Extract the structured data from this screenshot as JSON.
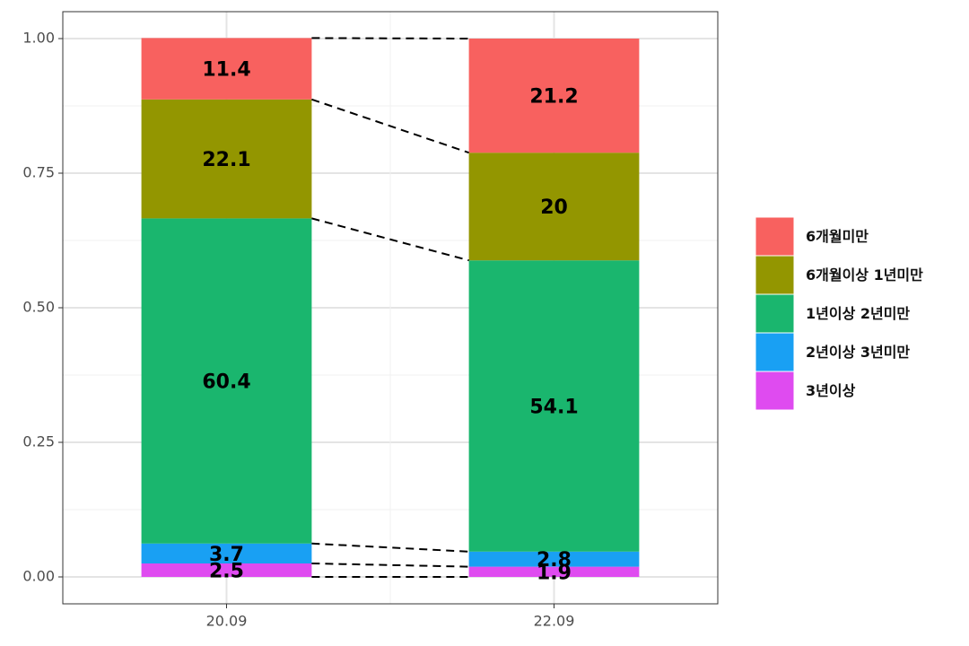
{
  "chart_data": {
    "type": "bar",
    "stacked": true,
    "categories": [
      "20.09",
      "22.09"
    ],
    "series": [
      {
        "name": "6개월미만",
        "color": "#f8615f",
        "values": [
          0.114,
          0.212
        ],
        "value_labels": [
          "11.4",
          "21.2"
        ]
      },
      {
        "name": "6개월이상 1년미만",
        "color": "#939600",
        "values": [
          0.221,
          0.2
        ],
        "value_labels": [
          "22.1",
          "20"
        ]
      },
      {
        "name": "1년이상 2년미만",
        "color": "#1ab66e",
        "values": [
          0.604,
          0.541
        ],
        "value_labels": [
          "60.4",
          "54.1"
        ]
      },
      {
        "name": "2년이상 3년미만",
        "color": "#19a0f3",
        "values": [
          0.037,
          0.028
        ],
        "value_labels": [
          "3.7",
          "2.8"
        ]
      },
      {
        "name": "3년이상",
        "color": "#df4bf0",
        "values": [
          0.025,
          0.019
        ],
        "value_labels": [
          "2.5",
          "1.9"
        ]
      }
    ],
    "ylim": [
      -0.05,
      1.05
    ],
    "yticks": [
      {
        "value": 0,
        "label": "0.00"
      },
      {
        "value": 0.25,
        "label": "0.25"
      },
      {
        "value": 0.5,
        "label": "0.50"
      },
      {
        "value": 0.75,
        "label": "0.75"
      },
      {
        "value": 1,
        "label": "1.00"
      }
    ],
    "grid": true,
    "legend": "right"
  }
}
